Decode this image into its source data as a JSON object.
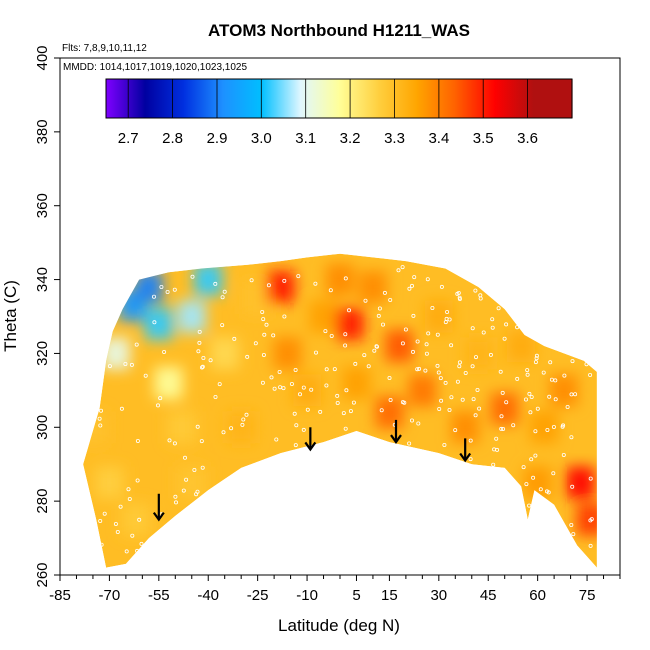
{
  "chart_data": {
    "type": "heatmap",
    "title": "ATOM3 Northbound H1211_WAS",
    "flights_label": "Flts: 7,8,9,10,11,12",
    "dates_label": "MMDD: 1014,1017,1019,1020,1023,1025",
    "xlabel": "Latitude (deg N)",
    "ylabel": "Theta (C)",
    "xlim": [
      -85,
      85
    ],
    "ylim": [
      260,
      400
    ],
    "x_ticks": [
      -85,
      -70,
      -55,
      -40,
      -25,
      -10,
      5,
      15,
      30,
      45,
      60,
      75
    ],
    "y_ticks": [
      260,
      280,
      300,
      320,
      340,
      360,
      380,
      400
    ],
    "colorbar": {
      "labels": [
        "2.7",
        "2.8",
        "2.9",
        "3.0",
        "3.1",
        "3.2",
        "3.3",
        "3.4",
        "3.5",
        "3.6"
      ],
      "range": [
        2.65,
        3.7
      ],
      "colors": [
        "#7f00ff",
        "#0000a0",
        "#0030e0",
        "#1e90ff",
        "#00bfff",
        "#e0f7ff",
        "#ffff99",
        "#ffd040",
        "#ffa500",
        "#ff6000",
        "#ff0000",
        "#b01010"
      ]
    },
    "upper_boundary": [
      [
        -73,
        305
      ],
      [
        -71,
        318
      ],
      [
        -69,
        326
      ],
      [
        -66,
        332
      ],
      [
        -61,
        340
      ],
      [
        -52,
        342
      ],
      [
        -42,
        343
      ],
      [
        -28,
        344
      ],
      [
        -18,
        345
      ],
      [
        -10,
        346
      ],
      [
        0,
        347
      ],
      [
        10,
        346
      ],
      [
        20,
        345
      ],
      [
        32,
        343
      ],
      [
        42,
        338
      ],
      [
        50,
        332
      ],
      [
        56,
        325
      ],
      [
        62,
        322
      ],
      [
        68,
        320
      ],
      [
        74,
        318
      ],
      [
        78,
        315
      ]
    ],
    "lower_boundary": [
      [
        -78,
        290
      ],
      [
        -74,
        275
      ],
      [
        -71,
        262
      ],
      [
        -65,
        263
      ],
      [
        -58,
        270
      ],
      [
        -50,
        276
      ],
      [
        -40,
        283
      ],
      [
        -30,
        289
      ],
      [
        -18,
        293
      ],
      [
        -5,
        296
      ],
      [
        5,
        299
      ],
      [
        15,
        296
      ],
      [
        30,
        293
      ],
      [
        40,
        290
      ],
      [
        50,
        289
      ],
      [
        55,
        284
      ],
      [
        57,
        275
      ],
      [
        59,
        283
      ],
      [
        65,
        279
      ],
      [
        72,
        268
      ],
      [
        78,
        262
      ]
    ],
    "field_points": [
      {
        "lat": -75,
        "theta": 300,
        "value": 3.35
      },
      {
        "lat": -70,
        "theta": 285,
        "value": 3.32
      },
      {
        "lat": -68,
        "theta": 320,
        "value": 3.15
      },
      {
        "lat": -63,
        "theta": 333,
        "value": 2.95
      },
      {
        "lat": -58,
        "theta": 338,
        "value": 2.92
      },
      {
        "lat": -55,
        "theta": 328,
        "value": 3.05
      },
      {
        "lat": -52,
        "theta": 312,
        "value": 3.22
      },
      {
        "lat": -48,
        "theta": 300,
        "value": 3.33
      },
      {
        "lat": -45,
        "theta": 330,
        "value": 3.1
      },
      {
        "lat": -40,
        "theta": 340,
        "value": 3.05
      },
      {
        "lat": -35,
        "theta": 320,
        "value": 3.3
      },
      {
        "lat": -30,
        "theta": 300,
        "value": 3.38
      },
      {
        "lat": -25,
        "theta": 335,
        "value": 3.35
      },
      {
        "lat": -18,
        "theta": 338,
        "value": 3.58
      },
      {
        "lat": -16,
        "theta": 320,
        "value": 3.45
      },
      {
        "lat": -10,
        "theta": 310,
        "value": 3.4
      },
      {
        "lat": -5,
        "theta": 330,
        "value": 3.42
      },
      {
        "lat": 0,
        "theta": 340,
        "value": 3.45
      },
      {
        "lat": 3,
        "theta": 328,
        "value": 3.58
      },
      {
        "lat": 5,
        "theta": 312,
        "value": 3.42
      },
      {
        "lat": 10,
        "theta": 338,
        "value": 3.45
      },
      {
        "lat": 15,
        "theta": 304,
        "value": 3.5
      },
      {
        "lat": 18,
        "theta": 322,
        "value": 3.52
      },
      {
        "lat": 25,
        "theta": 310,
        "value": 3.48
      },
      {
        "lat": 30,
        "theta": 330,
        "value": 3.4
      },
      {
        "lat": 38,
        "theta": 300,
        "value": 3.45
      },
      {
        "lat": 42,
        "theta": 320,
        "value": 3.38
      },
      {
        "lat": 50,
        "theta": 305,
        "value": 3.5
      },
      {
        "lat": 55,
        "theta": 322,
        "value": 3.4
      },
      {
        "lat": 62,
        "theta": 300,
        "value": 3.42
      },
      {
        "lat": 68,
        "theta": 310,
        "value": 3.45
      },
      {
        "lat": 73,
        "theta": 285,
        "value": 3.6
      },
      {
        "lat": 76,
        "theta": 275,
        "value": 3.55
      },
      {
        "lat": -62,
        "theta": 275,
        "value": 3.33
      },
      {
        "lat": -45,
        "theta": 285,
        "value": 3.34
      },
      {
        "lat": 60,
        "theta": 285,
        "value": 3.43
      }
    ],
    "arrows": [
      {
        "lat": -55,
        "theta_top": 282,
        "theta_bottom": 275
      },
      {
        "lat": -9,
        "theta_top": 300,
        "theta_bottom": 294
      },
      {
        "lat": 17,
        "theta_top": 302,
        "theta_bottom": 296
      },
      {
        "lat": 38,
        "theta_top": 297,
        "theta_bottom": 291
      }
    ]
  }
}
